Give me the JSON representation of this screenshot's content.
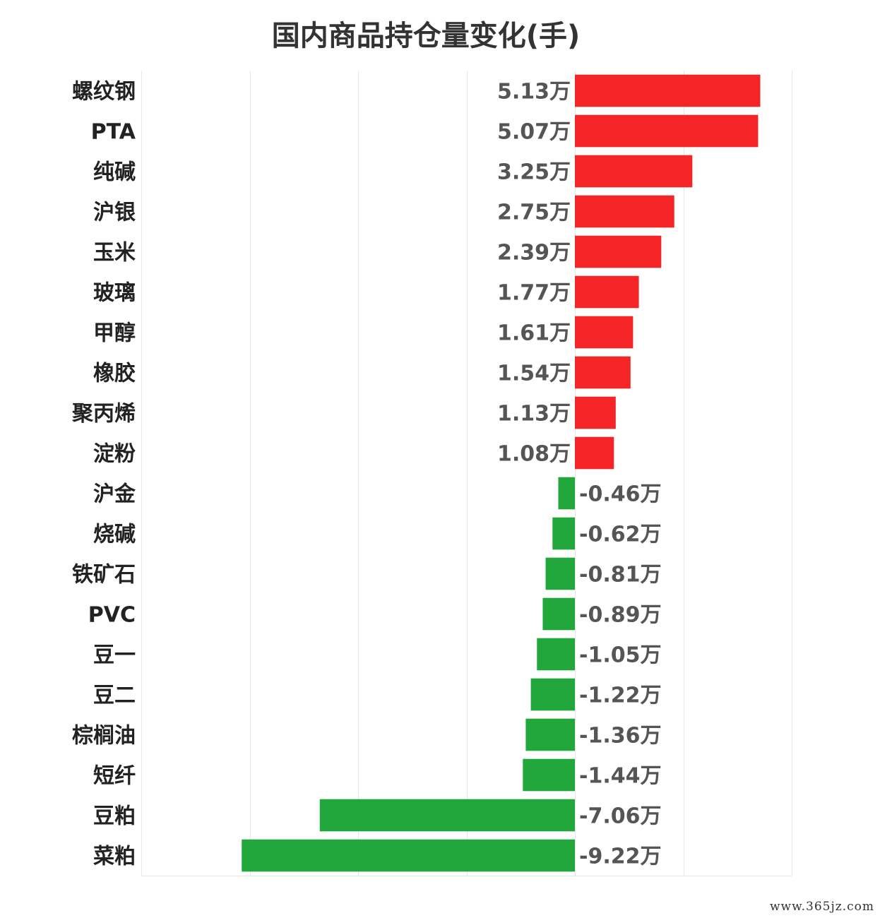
{
  "chart_data": {
    "type": "bar",
    "orientation": "horizontal",
    "title": "国内商品持仓量变化(手)",
    "categories": [
      "螺纹钢",
      "PTA",
      "纯碱",
      "沪银",
      "玉米",
      "玻璃",
      "甲醇",
      "橡胶",
      "聚丙烯",
      "淀粉",
      "沪金",
      "烧碱",
      "铁矿石",
      "PVC",
      "豆一",
      "豆二",
      "棕榈油",
      "短纤",
      "豆粕",
      "菜粕"
    ],
    "values": [
      5.13,
      5.07,
      3.25,
      2.75,
      2.39,
      1.77,
      1.61,
      1.54,
      1.13,
      1.08,
      -0.46,
      -0.62,
      -0.81,
      -0.89,
      -1.05,
      -1.22,
      -1.36,
      -1.44,
      -7.06,
      -9.22
    ],
    "value_labels": [
      "5.13万",
      "5.07万",
      "3.25万",
      "2.75万",
      "2.39万",
      "1.77万",
      "1.61万",
      "1.54万",
      "1.13万",
      "1.08万",
      "-0.46万",
      "-0.62万",
      "-0.81万",
      "-0.89万",
      "-1.05万",
      "-1.22万",
      "-1.36万",
      "-1.44万",
      "-7.06万",
      "-9.22万"
    ],
    "unit": "万",
    "xlim": [
      -12,
      6
    ],
    "grid": true,
    "colors": {
      "positive": "#f52426",
      "negative": "#21a73c"
    }
  },
  "watermark": "www.365jz.com"
}
